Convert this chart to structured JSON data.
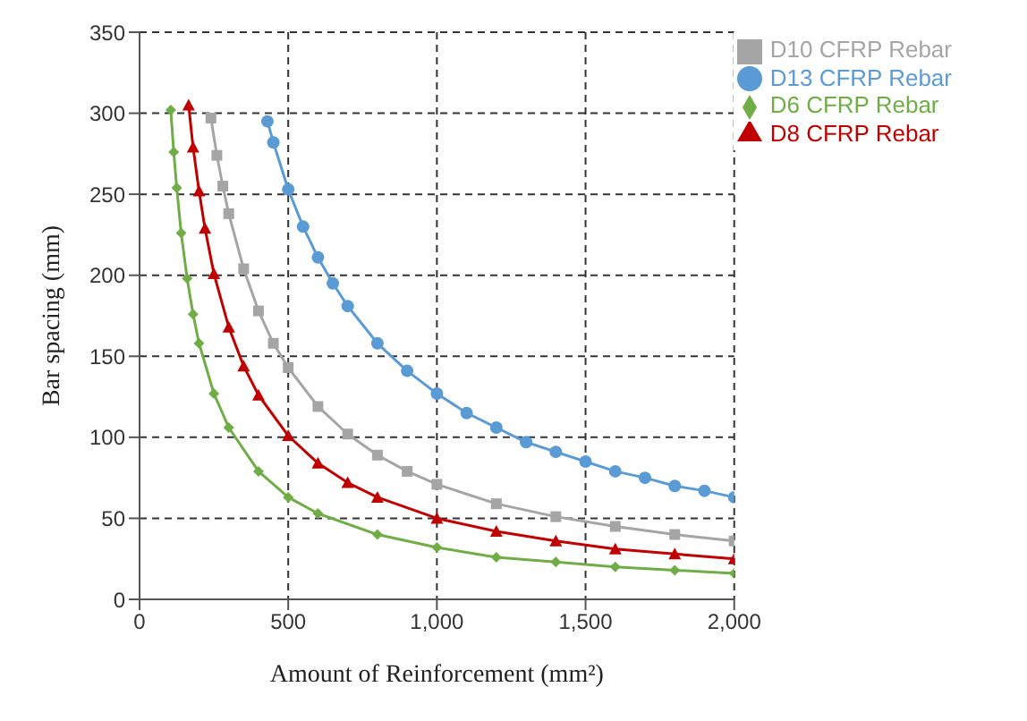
{
  "chart_data": {
    "type": "line",
    "xlabel": "Amount of Reinforcement (mm²)",
    "ylabel": "Bar spacing (mm)",
    "xlim": [
      0,
      2000
    ],
    "xticks": [
      0,
      500,
      {
        "value": 1000,
        "label": "1,000"
      },
      {
        "value": 1500,
        "label": "1,500"
      },
      {
        "value": 2000,
        "label": "2,000"
      }
    ],
    "ylim": [
      0,
      350
    ],
    "yticks": [
      0,
      50,
      100,
      150,
      200,
      250,
      300,
      350
    ],
    "grid": true,
    "legend": "top right",
    "line_style": "solid",
    "series": [
      {
        "name": "D13 CFRP Rebar",
        "color": "#5b9bd5",
        "marker": "circle",
        "x": [
          430,
          450,
          500,
          550,
          600,
          650,
          700,
          800,
          900,
          1000,
          1100,
          1200,
          1300,
          1400,
          1500,
          1600,
          1700,
          1800,
          1900,
          2000
        ],
        "values": [
          295,
          282,
          253,
          230,
          211,
          195,
          181,
          158,
          141,
          127,
          115,
          106,
          97,
          91,
          85,
          79,
          75,
          70,
          67,
          63
        ]
      },
      {
        "name": "D10 CFRP Rebar",
        "color": "#a5a5a5",
        "marker": "square",
        "x": [
          240,
          260,
          280,
          300,
          350,
          400,
          450,
          500,
          600,
          700,
          800,
          900,
          1000,
          1200,
          1400,
          1600,
          1800,
          2000
        ],
        "values": [
          297,
          274,
          255,
          238,
          204,
          178,
          158,
          143,
          119,
          102,
          89,
          79,
          71,
          59,
          51,
          45,
          40,
          36
        ]
      },
      {
        "name": "D8  CFRP Rebar",
        "color": "#c00000",
        "marker": "triangle",
        "x": [
          165,
          180,
          200,
          220,
          250,
          300,
          350,
          400,
          500,
          600,
          700,
          800,
          1000,
          1200,
          1400,
          1600,
          1800,
          2000
        ],
        "values": [
          305,
          279,
          252,
          229,
          201,
          168,
          144,
          126,
          101,
          84,
          72,
          63,
          50,
          42,
          36,
          31,
          28,
          25
        ]
      },
      {
        "name": "D6  CFRP Rebar",
        "color": "#70ad47",
        "marker": "diamond",
        "x": [
          105,
          115,
          125,
          140,
          160,
          180,
          200,
          250,
          300,
          400,
          500,
          600,
          800,
          1000,
          1200,
          1400,
          1600,
          1800,
          2000
        ],
        "values": [
          302,
          276,
          254,
          226,
          198,
          176,
          158,
          127,
          106,
          79,
          63,
          53,
          40,
          32,
          26,
          23,
          20,
          18,
          16
        ]
      }
    ]
  }
}
